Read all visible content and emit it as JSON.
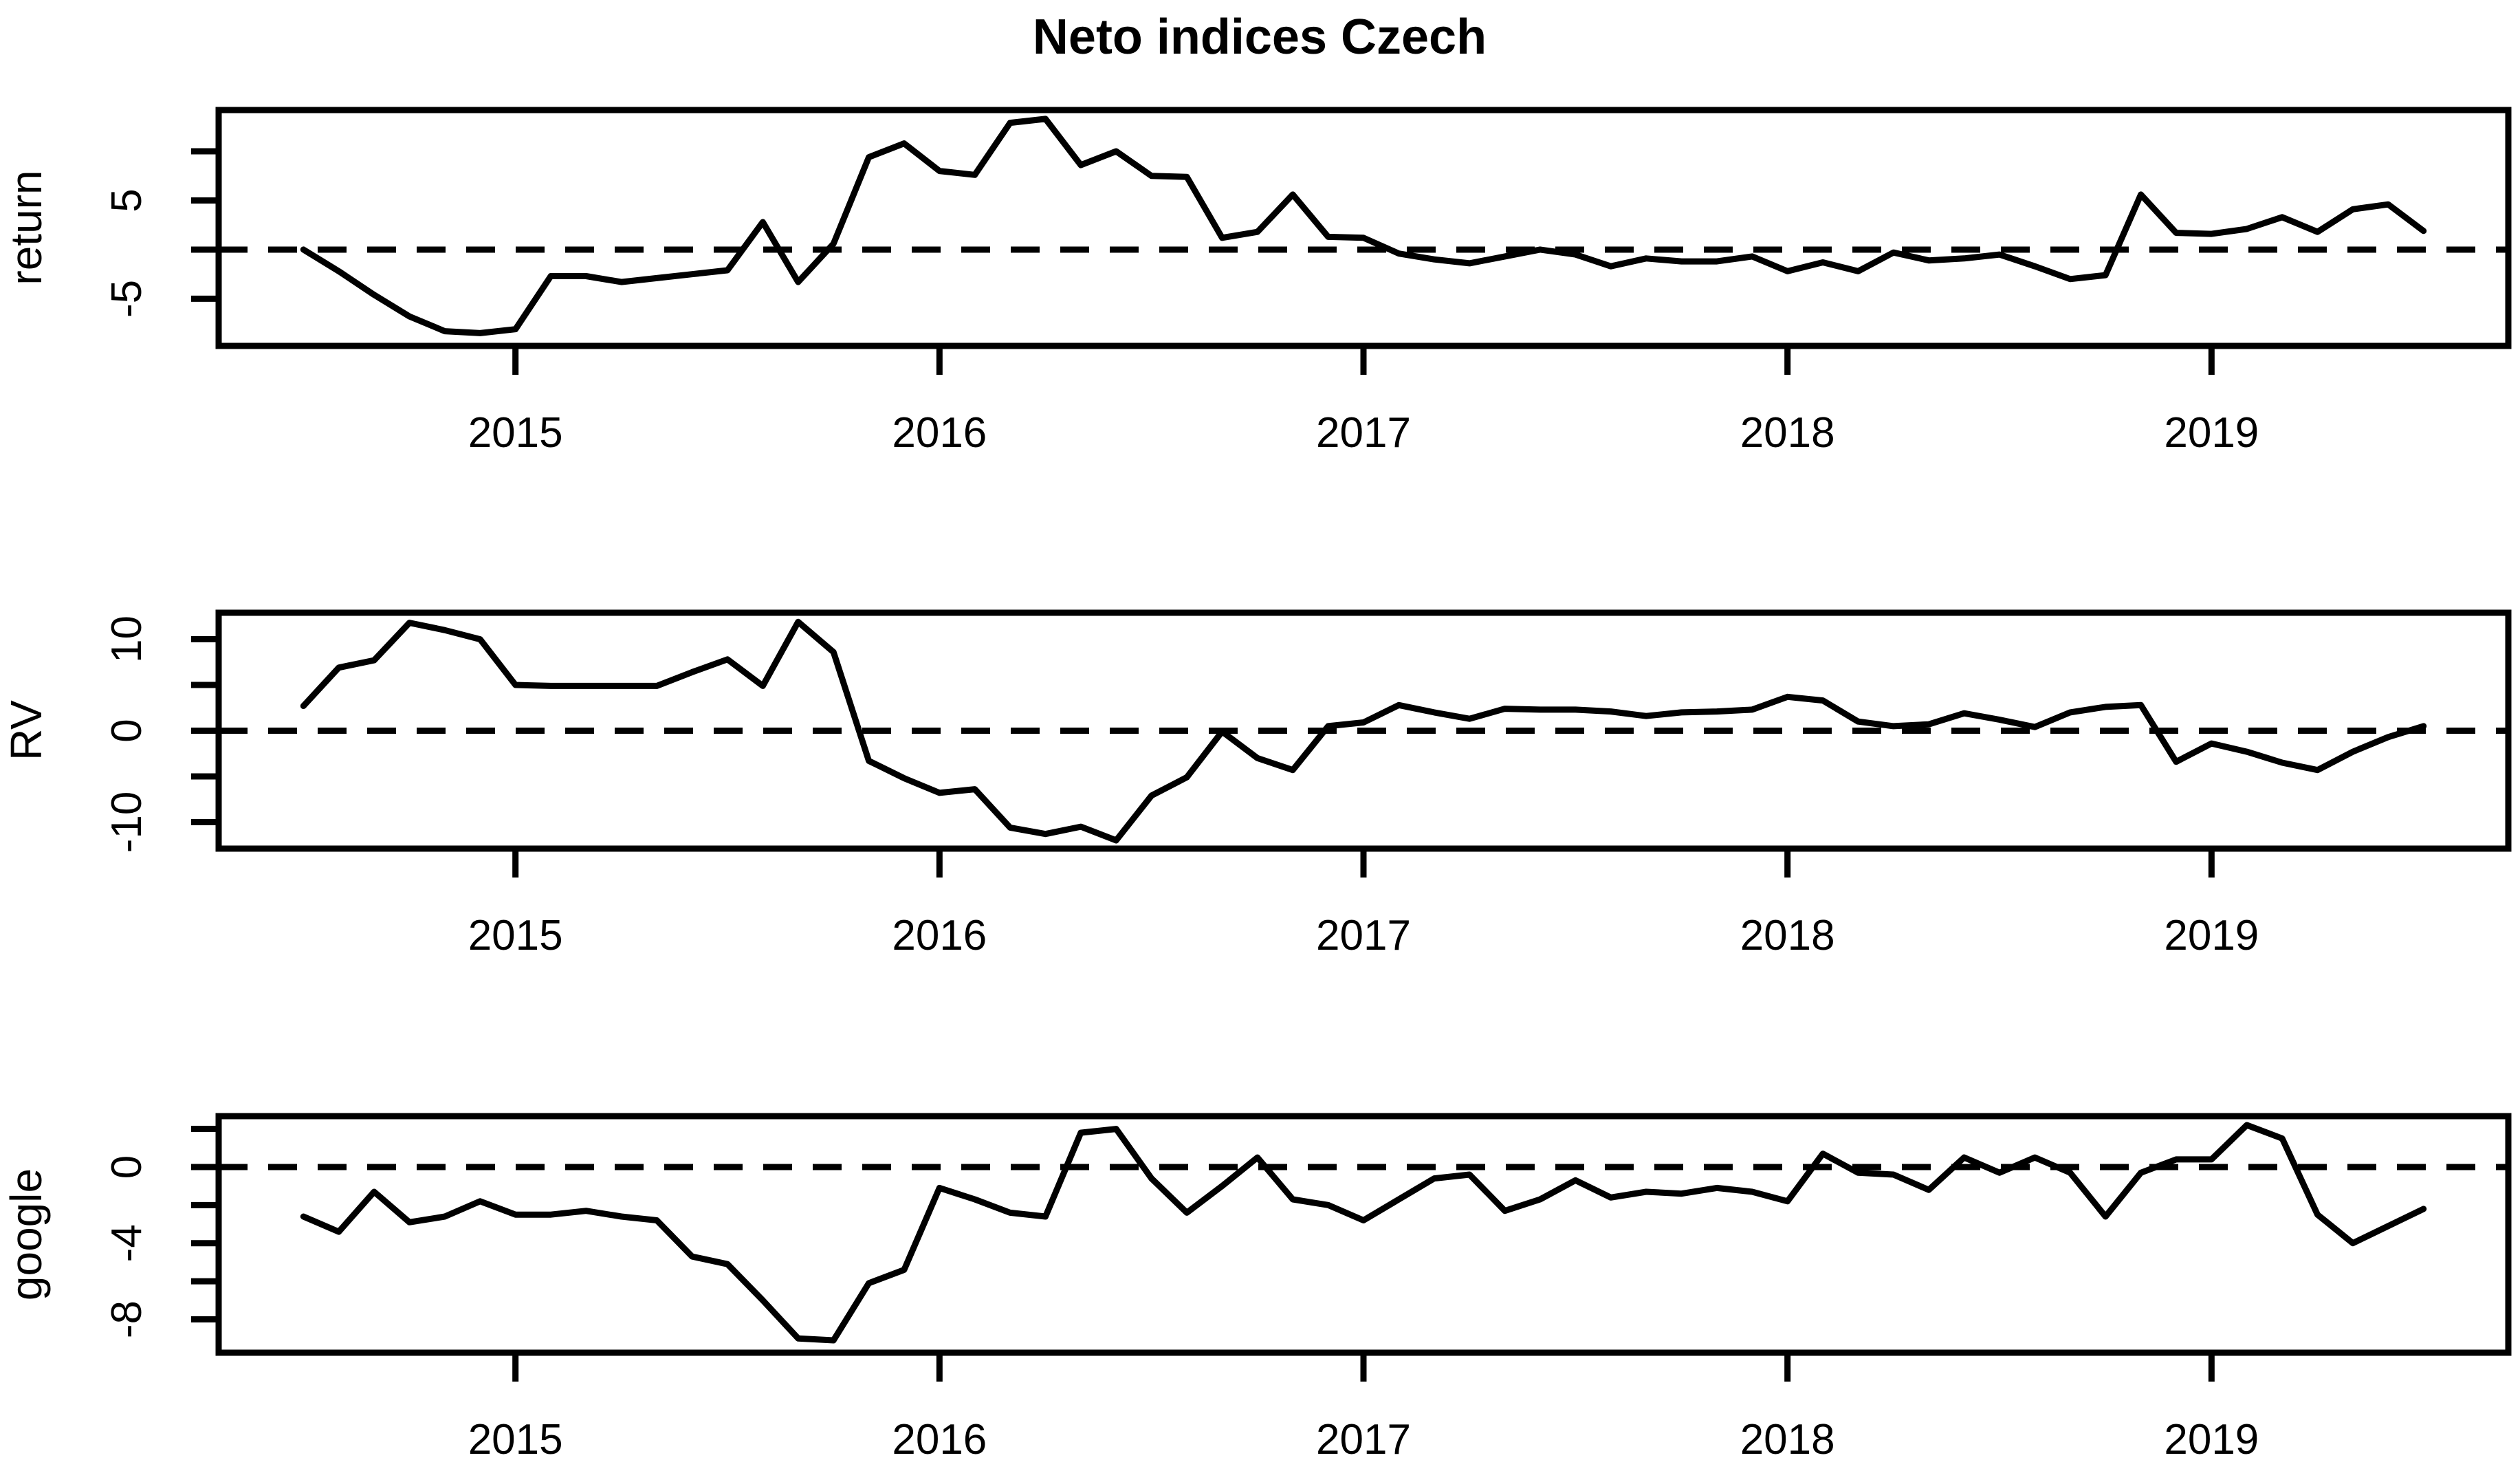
{
  "title": "Neto indices Czech",
  "background_color": "#ffffff",
  "line_color": "#000000",
  "axis_color": "#000000",
  "chart_data": [
    {
      "type": "line",
      "panel": "return",
      "ylabel": "return",
      "x_start_year": 2014,
      "x_start_month": 7,
      "frequency": "monthly",
      "xlim": [
        2014.3,
        2019.7
      ],
      "x_ticks": [
        2015,
        2016,
        2017,
        2018,
        2019
      ],
      "ylim": [
        -9.8,
        14.2
      ],
      "yticks": [
        {
          "value": 10,
          "label": ""
        },
        {
          "value": 5,
          "label": "5"
        },
        {
          "value": 0,
          "label": ""
        },
        {
          "value": -5,
          "label": "-5"
        }
      ],
      "zero_line_dashed": true,
      "values": [
        0.0,
        -2.2,
        -4.6,
        -6.8,
        -8.3,
        -8.5,
        -8.1,
        -2.7,
        -2.7,
        -3.3,
        -2.9,
        -2.5,
        -2.1,
        2.8,
        -3.3,
        0.6,
        9.4,
        10.8,
        8.0,
        7.6,
        12.9,
        13.3,
        8.6,
        10.0,
        7.5,
        7.4,
        1.2,
        1.8,
        5.6,
        1.3,
        1.2,
        -0.4,
        -1.0,
        -1.4,
        -0.7,
        0.0,
        -0.5,
        -1.7,
        -0.9,
        -1.2,
        -1.2,
        -0.7,
        -2.2,
        -1.3,
        -2.2,
        -0.3,
        -1.1,
        -0.9,
        -0.5,
        -1.7,
        -3.0,
        -2.6,
        5.6,
        1.7,
        1.6,
        2.1,
        3.3,
        1.8,
        4.1,
        4.6,
        1.9
      ]
    },
    {
      "type": "line",
      "panel": "rv",
      "ylabel": "RV",
      "x_start_year": 2014,
      "x_start_month": 7,
      "frequency": "monthly",
      "xlim": [
        2014.3,
        2019.7
      ],
      "x_ticks": [
        2015,
        2016,
        2017,
        2018,
        2019
      ],
      "ylim": [
        -12.9,
        12.9
      ],
      "yticks": [
        {
          "value": 10,
          "label": "10"
        },
        {
          "value": 5,
          "label": ""
        },
        {
          "value": 0,
          "label": "0"
        },
        {
          "value": -5,
          "label": ""
        },
        {
          "value": -10,
          "label": "-10"
        }
      ],
      "zero_line_dashed": true,
      "values": [
        2.7,
        6.9,
        7.7,
        11.8,
        11.0,
        10.0,
        5.0,
        4.9,
        4.9,
        4.9,
        4.9,
        6.4,
        7.8,
        4.9,
        11.9,
        8.6,
        -3.3,
        -5.2,
        -6.8,
        -6.4,
        -10.6,
        -11.3,
        -10.5,
        -12.0,
        -7.1,
        -5.1,
        -0.1,
        -3.0,
        -4.3,
        0.5,
        0.9,
        2.8,
        2.0,
        1.3,
        2.4,
        2.3,
        2.3,
        2.1,
        1.6,
        2.0,
        2.1,
        2.3,
        3.7,
        3.3,
        1.0,
        0.5,
        0.7,
        1.9,
        1.2,
        0.4,
        2.0,
        2.6,
        2.8,
        -3.4,
        -1.4,
        -2.3,
        -3.5,
        -4.3,
        -2.3,
        -0.7,
        0.5
      ]
    },
    {
      "type": "line",
      "panel": "google",
      "ylabel": "google",
      "x_start_year": 2014,
      "x_start_month": 7,
      "frequency": "monthly",
      "xlim": [
        2014.3,
        2019.7
      ],
      "x_ticks": [
        2015,
        2016,
        2017,
        2018,
        2019
      ],
      "ylim": [
        -9.75,
        2.67
      ],
      "yticks": [
        {
          "value": 2,
          "label": ""
        },
        {
          "value": 0,
          "label": "0"
        },
        {
          "value": -2,
          "label": ""
        },
        {
          "value": -4,
          "label": "-4"
        },
        {
          "value": -6,
          "label": ""
        },
        {
          "value": -8,
          "label": "-8"
        }
      ],
      "zero_line_dashed": true,
      "values": [
        -2.6,
        -3.4,
        -1.3,
        -2.9,
        -2.6,
        -1.8,
        -2.5,
        -2.5,
        -2.3,
        -2.6,
        -2.8,
        -4.7,
        -5.1,
        -7.0,
        -9.0,
        -9.1,
        -6.1,
        -5.4,
        -1.1,
        -1.7,
        -2.4,
        -2.6,
        1.8,
        2.0,
        -0.6,
        -2.4,
        -1.0,
        0.5,
        -1.7,
        -2.0,
        -2.8,
        -1.7,
        -0.6,
        -0.4,
        -2.3,
        -1.7,
        -0.7,
        -1.6,
        -1.3,
        -1.4,
        -1.1,
        -1.3,
        -1.8,
        0.7,
        -0.3,
        -0.4,
        -1.2,
        0.5,
        -0.3,
        0.5,
        -0.3,
        -2.6,
        -0.3,
        0.4,
        0.4,
        2.2,
        1.5,
        -2.5,
        -4.0,
        -3.1,
        -2.2
      ]
    }
  ]
}
